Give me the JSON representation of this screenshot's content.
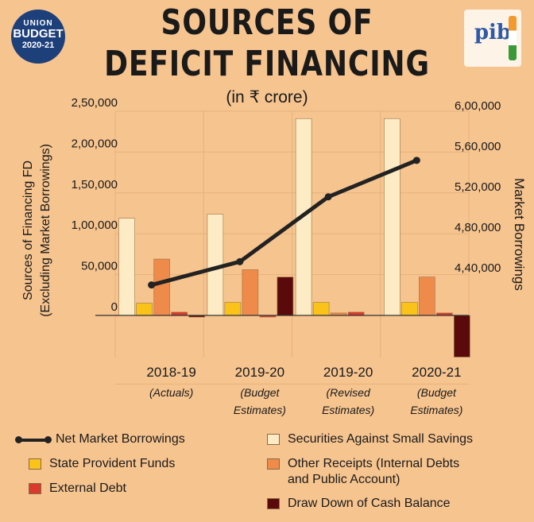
{
  "header": {
    "title_line1": "SOURCES OF",
    "title_line2": "DEFICIT FINANCING",
    "subtitle": "(in ₹ crore)"
  },
  "badge": {
    "line1": "UNION",
    "line2": "BUDGET",
    "line3": "2020-21"
  },
  "logo": {
    "text": "pib"
  },
  "chart_data": {
    "type": "bar",
    "categories": [
      "2018-19",
      "2019-20",
      "2019-20",
      "2020-21"
    ],
    "category_sublabels": [
      [
        "(Actuals)"
      ],
      [
        "(Budget",
        "Estimates)"
      ],
      [
        "(Revised",
        "Estimates)"
      ],
      [
        "(Budget",
        "Estimates)"
      ]
    ],
    "ylabel_left": [
      "Sources of Financing FD",
      "(Excluding Market Borrowings)"
    ],
    "ylabel_right": "Market Borrowings",
    "left_axis": {
      "ylim": [
        -50000,
        250000
      ],
      "ticks": [
        0,
        50000,
        100000,
        150000,
        200000,
        250000
      ],
      "tick_labels": [
        "0",
        "50,000",
        "1,00,000",
        "1,50,000",
        "2,00,000",
        "2,50,000"
      ]
    },
    "right_axis": {
      "ylim": [
        400000,
        600000
      ],
      "ticks": [
        440000,
        480000,
        520000,
        560000,
        600000
      ],
      "tick_labels": [
        "4,40,000",
        "4,80,000",
        "5,20,000",
        "5,60,000",
        "6,00,000"
      ]
    },
    "grid": true,
    "series": [
      {
        "name": "Securities Against Small Savings",
        "values": [
          119000,
          124000,
          241000,
          241000
        ],
        "color": "#fcebc4"
      },
      {
        "name": "State Provident Funds",
        "values": [
          15000,
          16000,
          16000,
          16000
        ],
        "color": "#f9c31a"
      },
      {
        "name": "Other Receipts (Internal Debts and Public Account)",
        "values": [
          69000,
          56000,
          3000,
          47000
        ],
        "color": "#ee8a4a"
      },
      {
        "name": "External Debt",
        "values": [
          4000,
          -2000,
          4000,
          3000
        ],
        "color": "#d83a2e"
      },
      {
        "name": "Draw Down of Cash Balance",
        "values": [
          -2000,
          47000,
          0,
          -51000
        ],
        "color": "#5a0a0a"
      }
    ],
    "line_series": {
      "name": "Net Market Borrowings",
      "axis": "right",
      "values": [
        423000,
        446000,
        510000,
        546000
      ],
      "color": "#222222"
    }
  },
  "legend": [
    {
      "key": "line",
      "label_lines": [
        "Net Market Borrowings"
      ]
    },
    {
      "key": "s0",
      "label_lines": [
        "Securities Against Small Savings"
      ]
    },
    {
      "key": "s1",
      "label_lines": [
        "State Provident Funds"
      ]
    },
    {
      "key": "s2",
      "label_lines": [
        "Other Receipts (Internal Debts",
        "and Public Account)"
      ]
    },
    {
      "key": "s3",
      "label_lines": [
        "External Debt"
      ]
    },
    {
      "key": "s4",
      "label_lines": [
        "Draw Down of Cash Balance"
      ]
    }
  ]
}
